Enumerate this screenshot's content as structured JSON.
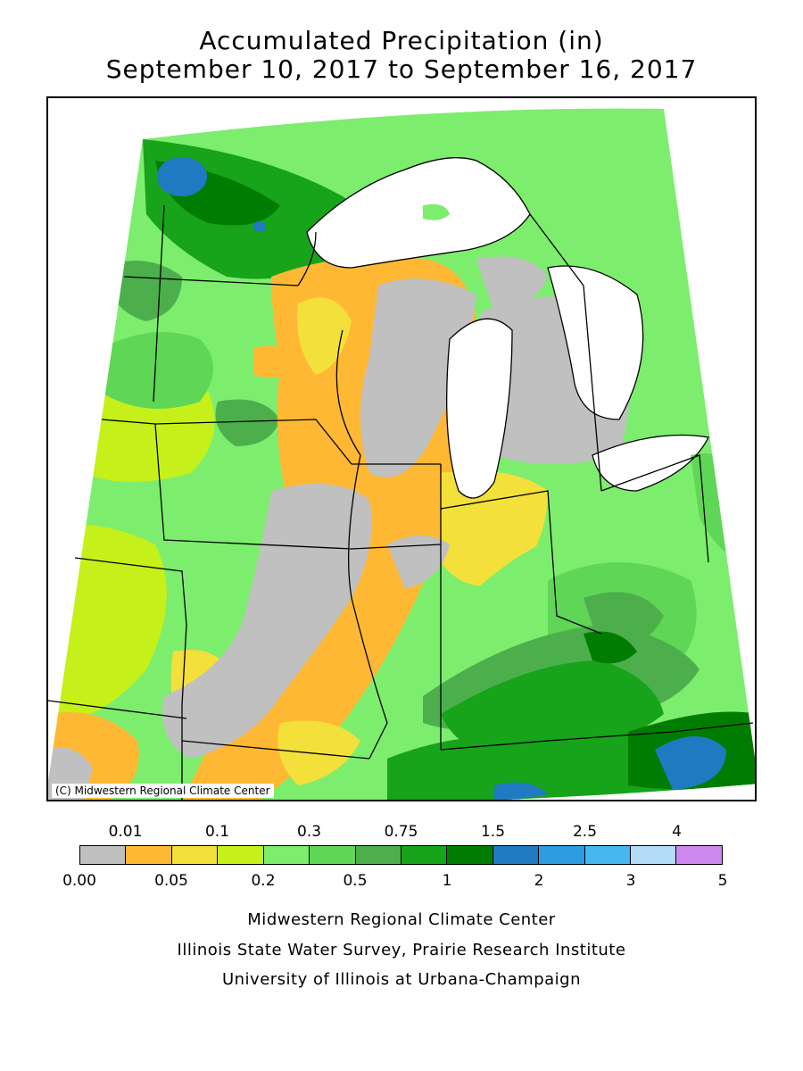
{
  "title": {
    "line1": "Accumulated Precipitation (in)",
    "line2": "September 10, 2017 to September 16, 2017"
  },
  "map": {
    "copyright": "(C) Midwestern Regional Climate Center"
  },
  "legend": {
    "colors": [
      "#c0c0c0",
      "#ffb833",
      "#f3e03b",
      "#c6f01a",
      "#7ded6e",
      "#5fd655",
      "#4caf4c",
      "#17a31a",
      "#007d00",
      "#1f7ac2",
      "#2b9de0",
      "#45b6ef",
      "#b4dcf8",
      "#cc88ee"
    ],
    "top_labels": [
      "0.01",
      "0.1",
      "0.3",
      "0.75",
      "1.5",
      "2.5",
      "4"
    ],
    "bottom_labels": [
      "0.00",
      "0.05",
      "0.2",
      "0.5",
      "1",
      "2",
      "3",
      "5"
    ]
  },
  "credits": [
    "Midwestern Regional Climate Center",
    "Illinois State Water Survey, Prairie Research Institute",
    "University of Illinois at Urbana-Champaign"
  ]
}
